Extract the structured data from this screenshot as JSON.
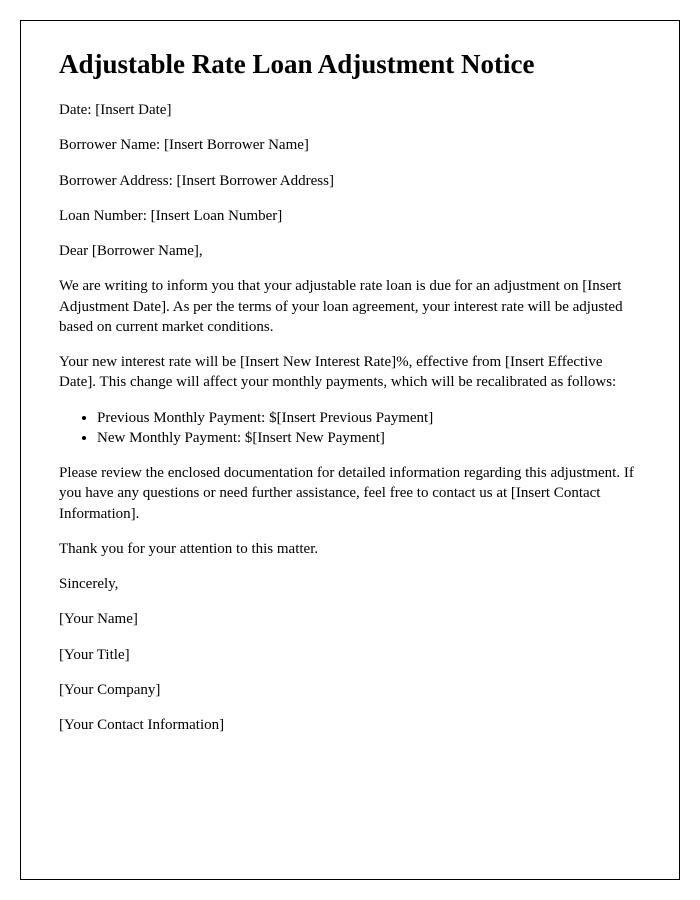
{
  "title": "Adjustable Rate Loan Adjustment Notice",
  "fields": {
    "date": "Date: [Insert Date]",
    "borrower_name": "Borrower Name: [Insert Borrower Name]",
    "borrower_address": "Borrower Address: [Insert Borrower Address]",
    "loan_number": "Loan Number: [Insert Loan Number]"
  },
  "salutation": "Dear [Borrower Name],",
  "body": {
    "paragraph1": "We are writing to inform you that your adjustable rate loan is due for an adjustment on [Insert Adjustment Date]. As per the terms of your loan agreement, your interest rate will be adjusted based on current market conditions.",
    "paragraph2": "Your new interest rate will be [Insert New Interest Rate]%, effective from [Insert Effective Date]. This change will affect your monthly payments, which will be recalibrated as follows:",
    "payment_list": {
      "previous": "Previous Monthly Payment: $[Insert Previous Payment]",
      "new": "New Monthly Payment: $[Insert New Payment]"
    },
    "paragraph3": "Please review the enclosed documentation for detailed information regarding this adjustment. If you have any questions or need further assistance, feel free to contact us at [Insert Contact Information].",
    "paragraph4": "Thank you for your attention to this matter."
  },
  "closing": {
    "sincerely": "Sincerely,",
    "name": "[Your Name]",
    "title": "[Your Title]",
    "company": "[Your Company]",
    "contact": "[Your Contact Information]"
  }
}
